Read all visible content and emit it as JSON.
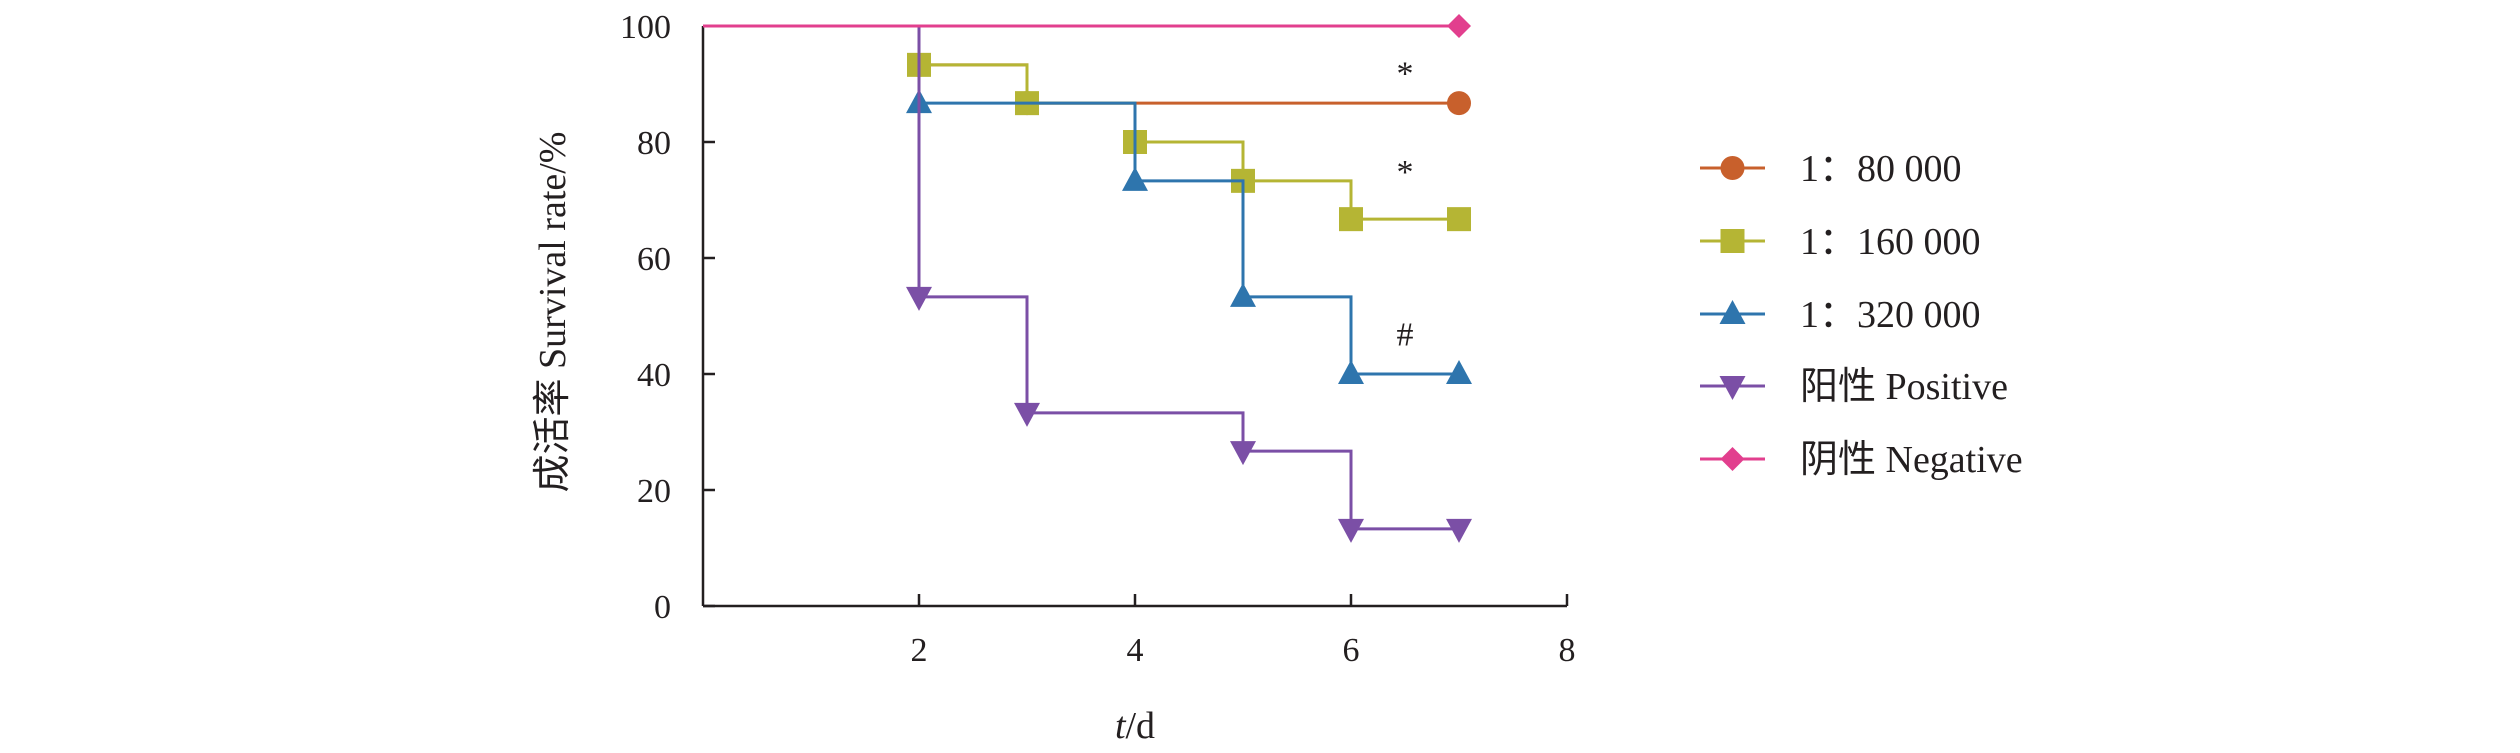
{
  "chart_data": {
    "type": "line",
    "step": true,
    "title": "",
    "xlabel_italic": "t",
    "xlabel_rest": "/d",
    "ylabel": "成活率 Survival rate/%",
    "xlim": [
      0,
      8
    ],
    "ylim": [
      0,
      100
    ],
    "xticks": [
      2,
      4,
      6,
      8
    ],
    "yticks": [
      0,
      20,
      40,
      60,
      80,
      100
    ],
    "grid": false,
    "legend_position": "right",
    "series": [
      {
        "name": "1：80 000",
        "color": "#c8602c",
        "marker": "circle",
        "x": [
          0,
          2,
          3,
          7
        ],
        "y": [
          100,
          93.3,
          86.7,
          86.7
        ],
        "marker_x": [
          2,
          3,
          7
        ],
        "marker_y": [
          93.3,
          86.7,
          86.7
        ]
      },
      {
        "name": "1：160 000",
        "color": "#b5b534",
        "marker": "square",
        "x": [
          0,
          2,
          3,
          4,
          5,
          6,
          7
        ],
        "y": [
          100,
          93.3,
          86.7,
          80,
          73.3,
          66.7,
          66.7
        ],
        "marker_x": [
          2,
          3,
          4,
          5,
          6,
          7
        ],
        "marker_y": [
          93.3,
          86.7,
          80,
          73.3,
          66.7,
          66.7
        ]
      },
      {
        "name": "1：320 000",
        "color": "#2e75ad",
        "marker": "triangle-up",
        "x": [
          0,
          2,
          4,
          5,
          6,
          7
        ],
        "y": [
          100,
          86.7,
          73.3,
          53.3,
          40,
          40
        ],
        "marker_x": [
          2,
          4,
          5,
          6,
          7
        ],
        "marker_y": [
          86.7,
          73.3,
          53.3,
          40,
          40
        ]
      },
      {
        "name": "阳性 Positive",
        "color": "#7b4fa6",
        "marker": "triangle-down",
        "x": [
          0,
          2,
          3,
          5,
          6,
          7
        ],
        "y": [
          100,
          53.3,
          33.3,
          26.7,
          13.3,
          13.3
        ],
        "marker_x": [
          2,
          3,
          5,
          6,
          7
        ],
        "marker_y": [
          53.3,
          33.3,
          26.7,
          13.3,
          13.3
        ]
      },
      {
        "name": "阴性 Negative",
        "color": "#e23f8e",
        "marker": "diamond",
        "x": [
          0,
          7
        ],
        "y": [
          100,
          100
        ],
        "marker_x": [
          7
        ],
        "marker_y": [
          100
        ]
      }
    ],
    "annotations": [
      {
        "text": "*",
        "x": 6.5,
        "y": 92
      },
      {
        "text": "*",
        "x": 6.5,
        "y": 75
      },
      {
        "text": "#",
        "x": 6.5,
        "y": 47
      }
    ]
  }
}
